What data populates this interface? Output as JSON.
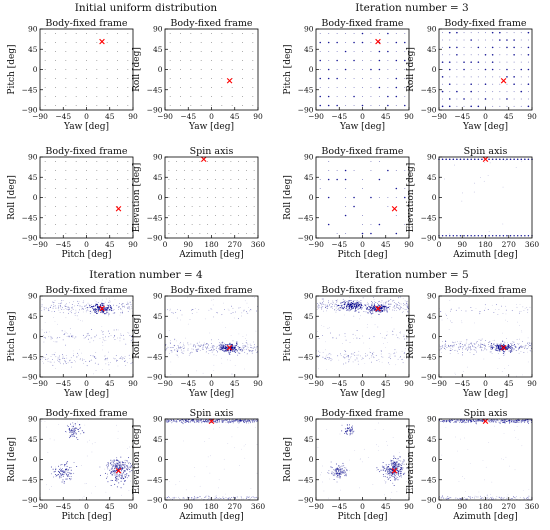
{
  "figure": {
    "group_titles": [
      "Initial uniform distribution",
      "Iteration number = 3",
      "Iteration number = 4",
      "Iteration number = 5"
    ]
  },
  "colors": {
    "marker": "#ff0000",
    "dense": "#00008b",
    "sparse": "#6f6fb8",
    "uniform": "#8a8a8a"
  },
  "chart_data": [
    {
      "type": "scatter",
      "group": "Initial uniform distribution",
      "title": "Body-fixed frame",
      "xlabel": "Yaw [deg]",
      "ylabel": "Pitch [deg]",
      "xlim": [
        -90,
        90
      ],
      "ylim": [
        -90,
        90
      ],
      "xticks": [
        -90,
        -45,
        0,
        45,
        90
      ],
      "yticks": [
        -90,
        -45,
        0,
        45,
        90
      ],
      "xticklabels": [
        "−90",
        "−45",
        "0",
        "45",
        "90"
      ],
      "yticklabels": [
        "−90",
        "−45",
        "0",
        "45",
        "90"
      ],
      "marker": [
        30,
        62
      ],
      "pattern": "uniform_grid",
      "grid_rows": 9,
      "grid_cols": 9,
      "seed": 11
    },
    {
      "type": "scatter",
      "group": "Initial uniform distribution",
      "title": "Body-fixed frame",
      "xlabel": "Yaw [deg]",
      "ylabel": "Roll [deg]",
      "xlim": [
        -90,
        90
      ],
      "ylim": [
        -90,
        90
      ],
      "xticks": [
        -90,
        -45,
        0,
        45,
        90
      ],
      "yticks": [
        -90,
        -45,
        0,
        45,
        90
      ],
      "xticklabels": [
        "−90",
        "−45",
        "0",
        "45",
        "90"
      ],
      "yticklabels": [
        "−90",
        "−45",
        "0",
        "45",
        "90"
      ],
      "marker": [
        35,
        -25
      ],
      "pattern": "uniform_grid",
      "grid_rows": 9,
      "grid_cols": 9,
      "seed": 12
    },
    {
      "type": "scatter",
      "group": "Initial uniform distribution",
      "title": "Body-fixed frame",
      "xlabel": "Pitch [deg]",
      "ylabel": "Roll [deg]",
      "xlim": [
        -90,
        90
      ],
      "ylim": [
        -90,
        90
      ],
      "xticks": [
        -90,
        -45,
        0,
        45,
        90
      ],
      "yticks": [
        -90,
        -45,
        0,
        45,
        90
      ],
      "xticklabels": [
        "−90",
        "−45",
        "0",
        "45",
        "90"
      ],
      "yticklabels": [
        "−90",
        "−45",
        "0",
        "45",
        "90"
      ],
      "marker": [
        62,
        -25
      ],
      "pattern": "uniform_grid",
      "grid_rows": 9,
      "grid_cols": 9,
      "seed": 13
    },
    {
      "type": "scatter",
      "group": "Initial uniform distribution",
      "title": "Spin axis",
      "xlabel": "Azimuth [deg]",
      "ylabel": "Elevation [deg]",
      "xlim": [
        0,
        360
      ],
      "ylim": [
        -90,
        90
      ],
      "xticks": [
        0,
        90,
        180,
        270,
        360
      ],
      "yticks": [
        -90,
        -45,
        0,
        45,
        90
      ],
      "xticklabels": [
        "0",
        "90",
        "180",
        "270",
        "360"
      ],
      "yticklabels": [
        "−90",
        "−45",
        "0",
        "45",
        "90"
      ],
      "marker": [
        150,
        85
      ],
      "pattern": "uniform_grid",
      "grid_rows": 9,
      "grid_cols": 12,
      "seed": 14
    },
    {
      "type": "scatter",
      "group": "Iteration number = 3",
      "title": "Body-fixed frame",
      "xlabel": "Yaw [deg]",
      "ylabel": "Pitch [deg]",
      "xlim": [
        -90,
        90
      ],
      "ylim": [
        -90,
        90
      ],
      "xticks": [
        -90,
        -45,
        0,
        45,
        90
      ],
      "yticks": [
        -90,
        -45,
        0,
        45,
        90
      ],
      "xticklabels": [
        "−90",
        "−45",
        "0",
        "45",
        "90"
      ],
      "yticklabels": [
        "−90",
        "−45",
        "0",
        "45",
        "90"
      ],
      "marker": [
        30,
        62
      ],
      "pattern": "dense_grid",
      "grid_rows": 9,
      "grid_cols": 11,
      "seed": 21
    },
    {
      "type": "scatter",
      "group": "Iteration number = 3",
      "title": "Body-fixed frame",
      "xlabel": "Yaw [deg]",
      "ylabel": "Roll [deg]",
      "xlim": [
        -90,
        90
      ],
      "ylim": [
        -90,
        90
      ],
      "xticks": [
        -90,
        -45,
        0,
        45,
        90
      ],
      "yticks": [
        -90,
        -45,
        0,
        45,
        90
      ],
      "xticklabels": [
        "−90",
        "−45",
        "0",
        "45",
        "90"
      ],
      "yticklabels": [
        "−90",
        "−45",
        "0",
        "45",
        "90"
      ],
      "marker": [
        35,
        -25
      ],
      "pattern": "dense_grid",
      "grid_rows": 11,
      "grid_cols": 13,
      "seed": 22
    },
    {
      "type": "scatter",
      "group": "Iteration number = 3",
      "title": "Body-fixed frame",
      "xlabel": "Pitch [deg]",
      "ylabel": "Roll [deg]",
      "xlim": [
        -90,
        90
      ],
      "ylim": [
        -90,
        90
      ],
      "xticks": [
        -90,
        -45,
        0,
        45,
        90
      ],
      "yticks": [
        -90,
        -45,
        0,
        45,
        90
      ],
      "xticklabels": [
        "−90",
        "−45",
        "0",
        "45",
        "90"
      ],
      "yticklabels": [
        "−90",
        "−45",
        "0",
        "45",
        "90"
      ],
      "marker": [
        62,
        -25
      ],
      "pattern": "sparse_grid",
      "grid_rows": 9,
      "grid_cols": 11,
      "seed": 23
    },
    {
      "type": "scatter",
      "group": "Iteration number = 3",
      "title": "Spin axis",
      "xlabel": "Azimuth [deg]",
      "ylabel": "Elevation [deg]",
      "xlim": [
        0,
        360
      ],
      "ylim": [
        -90,
        90
      ],
      "xticks": [
        0,
        90,
        180,
        270,
        360
      ],
      "yticks": [
        -90,
        -45,
        0,
        45,
        90
      ],
      "xticklabels": [
        "0",
        "90",
        "180",
        "270",
        "360"
      ],
      "yticklabels": [
        "−90",
        "−45",
        "0",
        "45",
        "90"
      ],
      "marker": [
        180,
        85
      ],
      "pattern": "top_bottom_rows",
      "seed": 24
    },
    {
      "type": "scatter",
      "group": "Iteration number = 4",
      "title": "Body-fixed frame",
      "xlabel": "Yaw [deg]",
      "ylabel": "Pitch [deg]",
      "xlim": [
        -90,
        90
      ],
      "ylim": [
        -90,
        90
      ],
      "xticks": [
        -90,
        -45,
        0,
        45,
        90
      ],
      "yticks": [
        -90,
        -45,
        0,
        45,
        90
      ],
      "xticklabels": [
        "−90",
        "−45",
        "0",
        "45",
        "90"
      ],
      "yticklabels": [
        "−90",
        "−45",
        "0",
        "45",
        "90"
      ],
      "marker": [
        30,
        62
      ],
      "pattern": "bands",
      "bands": [
        [
          65,
          0.22
        ],
        [
          0,
          0.1
        ],
        [
          -50,
          0.13
        ]
      ],
      "hot": [
        [
          30,
          62
        ]
      ],
      "seed": 31
    },
    {
      "type": "scatter",
      "group": "Iteration number = 4",
      "title": "Body-fixed frame",
      "xlabel": "Yaw [deg]",
      "ylabel": "Roll [deg]",
      "xlim": [
        -90,
        90
      ],
      "ylim": [
        -90,
        90
      ],
      "xticks": [
        -90,
        -45,
        0,
        45,
        90
      ],
      "yticks": [
        -90,
        -45,
        0,
        45,
        90
      ],
      "xticklabels": [
        "−90",
        "−45",
        "0",
        "45",
        "90"
      ],
      "yticklabels": [
        "−90",
        "−45",
        "0",
        "45",
        "90"
      ],
      "marker": [
        35,
        -25
      ],
      "pattern": "bands",
      "bands": [
        [
          -25,
          0.3
        ],
        [
          55,
          0.05
        ]
      ],
      "hot": [
        [
          35,
          -25
        ]
      ],
      "seed": 32
    },
    {
      "type": "scatter",
      "group": "Iteration number = 4",
      "title": "Body-fixed frame",
      "xlabel": "Pitch [deg]",
      "ylabel": "Roll [deg]",
      "xlim": [
        -90,
        90
      ],
      "ylim": [
        -90,
        90
      ],
      "xticks": [
        -90,
        -45,
        0,
        45,
        90
      ],
      "yticks": [
        -90,
        -45,
        0,
        45,
        90
      ],
      "xticklabels": [
        "−90",
        "−45",
        "0",
        "45",
        "90"
      ],
      "yticklabels": [
        "−90",
        "−45",
        "0",
        "45",
        "90"
      ],
      "marker": [
        62,
        -25
      ],
      "pattern": "clusters",
      "clusters": [
        [
          62,
          -22,
          12,
          0.5
        ],
        [
          -45,
          -28,
          9,
          0.2
        ],
        [
          -25,
          65,
          8,
          0.15
        ]
      ],
      "seed": 33
    },
    {
      "type": "scatter",
      "group": "Iteration number = 4",
      "title": "Spin axis",
      "xlabel": "Azimuth [deg]",
      "ylabel": "Elevation [deg]",
      "xlim": [
        0,
        360
      ],
      "ylim": [
        -90,
        90
      ],
      "xticks": [
        0,
        90,
        180,
        270,
        360
      ],
      "yticks": [
        -90,
        -45,
        0,
        45,
        90
      ],
      "xticklabels": [
        "0",
        "90",
        "180",
        "270",
        "360"
      ],
      "yticklabels": [
        "−90",
        "−45",
        "0",
        "45",
        "90"
      ],
      "marker": [
        180,
        85
      ],
      "pattern": "top_bottom_bands",
      "seed": 34
    },
    {
      "type": "scatter",
      "group": "Iteration number = 5",
      "title": "Body-fixed frame",
      "xlabel": "Yaw [deg]",
      "ylabel": "Pitch [deg]",
      "xlim": [
        -90,
        90
      ],
      "ylim": [
        -90,
        90
      ],
      "xticks": [
        -90,
        -45,
        0,
        45,
        90
      ],
      "yticks": [
        -90,
        -45,
        0,
        45,
        90
      ],
      "xticklabels": [
        "−90",
        "−45",
        "0",
        "45",
        "90"
      ],
      "yticklabels": [
        "−90",
        "−45",
        "0",
        "45",
        "90"
      ],
      "marker": [
        30,
        62
      ],
      "pattern": "bands",
      "bands": [
        [
          68,
          0.32
        ],
        [
          -45,
          0.12
        ],
        [
          0,
          0.04
        ]
      ],
      "hot": [
        [
          -20,
          68
        ],
        [
          30,
          62
        ]
      ],
      "seed": 41
    },
    {
      "type": "scatter",
      "group": "Iteration number = 5",
      "title": "Body-fixed frame",
      "xlabel": "Yaw [deg]",
      "ylabel": "Roll [deg]",
      "xlim": [
        -90,
        90
      ],
      "ylim": [
        -90,
        90
      ],
      "xticks": [
        -90,
        -45,
        0,
        45,
        90
      ],
      "yticks": [
        -90,
        -45,
        0,
        45,
        90
      ],
      "xticklabels": [
        "−90",
        "−45",
        "0",
        "45",
        "90"
      ],
      "yticklabels": [
        "−90",
        "−45",
        "0",
        "45",
        "90"
      ],
      "marker": [
        35,
        -25
      ],
      "pattern": "bands",
      "bands": [
        [
          -22,
          0.32
        ],
        [
          60,
          0.04
        ]
      ],
      "hot": [
        [
          35,
          -25
        ]
      ],
      "seed": 42
    },
    {
      "type": "scatter",
      "group": "Iteration number = 5",
      "title": "Body-fixed frame",
      "xlabel": "Pitch [deg]",
      "ylabel": "Roll [deg]",
      "xlim": [
        -90,
        90
      ],
      "ylim": [
        -90,
        90
      ],
      "xticks": [
        -90,
        -45,
        0,
        45,
        90
      ],
      "yticks": [
        -90,
        -45,
        0,
        45,
        90
      ],
      "xticklabels": [
        "−90",
        "−45",
        "0",
        "45",
        "90"
      ],
      "yticklabels": [
        "−90",
        "−45",
        "0",
        "45",
        "90"
      ],
      "marker": [
        62,
        -25
      ],
      "pattern": "clusters",
      "clusters": [
        [
          60,
          -22,
          10,
          0.55
        ],
        [
          -45,
          -28,
          7,
          0.22
        ],
        [
          -25,
          65,
          6,
          0.1
        ]
      ],
      "seed": 43
    },
    {
      "type": "scatter",
      "group": "Iteration number = 5",
      "title": "Spin axis",
      "xlabel": "Azimuth [deg]",
      "ylabel": "Elevation [deg]",
      "xlim": [
        0,
        360
      ],
      "ylim": [
        -90,
        90
      ],
      "xticks": [
        0,
        90,
        180,
        270,
        360
      ],
      "yticks": [
        -90,
        -45,
        0,
        45,
        90
      ],
      "xticklabels": [
        "0",
        "90",
        "180",
        "270",
        "360"
      ],
      "yticklabels": [
        "−90",
        "−45",
        "0",
        "45",
        "90"
      ],
      "marker": [
        180,
        85
      ],
      "pattern": "top_bottom_bands",
      "seed": 44
    }
  ]
}
